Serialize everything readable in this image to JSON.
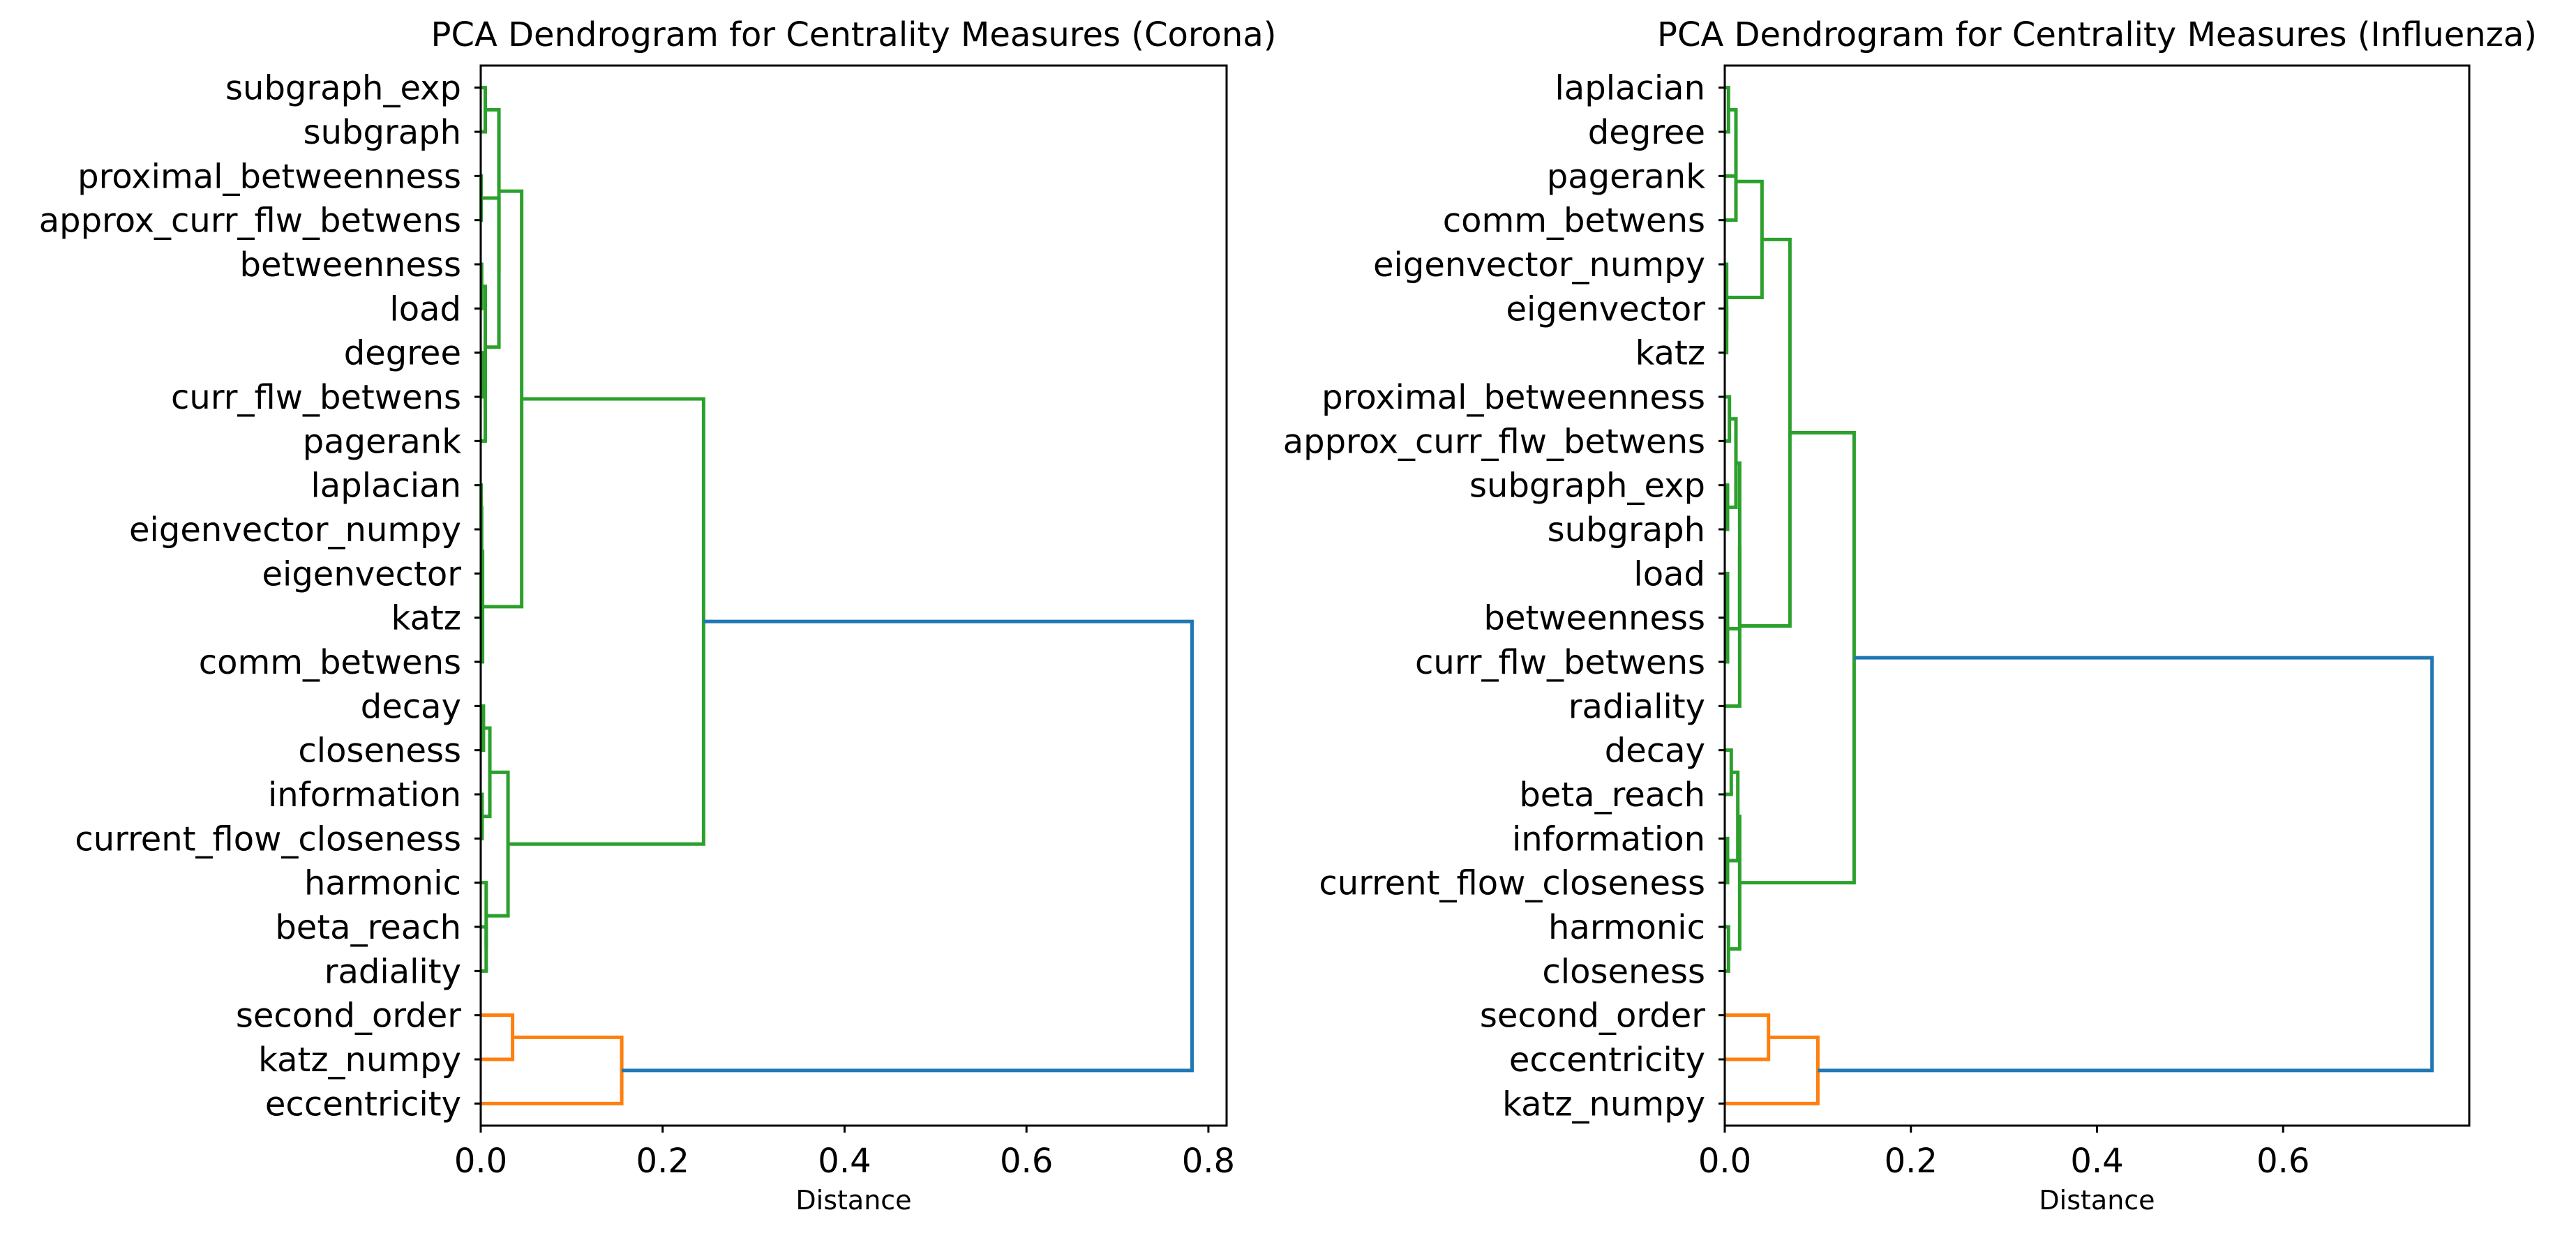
{
  "figure": {
    "xlabel": "Distance"
  },
  "chart_data": [
    {
      "type": "dendrogram",
      "orientation": "horizontal",
      "title": "PCA Dendrogram for Centrality Measures (Corona)",
      "xlabel": "Distance",
      "xlim": [
        0,
        0.82
      ],
      "xticks": [
        "0.0",
        "0.2",
        "0.4",
        "0.6",
        "0.8"
      ],
      "xtick_values": [
        0,
        0.2,
        0.4,
        0.6,
        0.8
      ],
      "leaves": [
        "subgraph_exp",
        "subgraph",
        "proximal_betweenness",
        "approx_curr_flw_betwens",
        "betweenness",
        "load",
        "degree",
        "curr_flw_betwens",
        "pagerank",
        "laplacian",
        "eigenvector_numpy",
        "eigenvector",
        "katz",
        "comm_betwens",
        "decay",
        "closeness",
        "information",
        "current_flow_closeness",
        "harmonic",
        "beta_reach",
        "radiality",
        "second_order",
        "katz_numpy",
        "eccentricity"
      ],
      "colors": {
        "green": "#2ca02c",
        "orange": "#ff7f0e",
        "blue": "#1f77b4"
      },
      "links": [
        {
          "a": 0,
          "b": 1,
          "h": 0.005,
          "c": "green"
        },
        {
          "a": 2,
          "b": 3,
          "h": 0.0005,
          "c": "green"
        },
        {
          "a": 4,
          "b": 5,
          "h": 0.001,
          "c": "green"
        },
        {
          "a": 6,
          "b": 7,
          "h": 0.003,
          "c": "green"
        },
        {
          "a": "N3",
          "b": 8,
          "h": 0.005,
          "c": "green"
        },
        {
          "a": "N2",
          "b": "N4",
          "h": 0.005,
          "c": "green"
        },
        {
          "a": 9,
          "b": 10,
          "h": 0.0005,
          "c": "green"
        },
        {
          "a": 11,
          "b": 12,
          "h": 0.0005,
          "c": "green"
        },
        {
          "a": "N6",
          "b": "N7",
          "h": 0.001,
          "c": "green"
        },
        {
          "a": "N8",
          "b": 13,
          "h": 0.002,
          "c": "green"
        },
        {
          "a": "N1",
          "b": "N5",
          "h": 0.02,
          "c": "green"
        },
        {
          "a": "N0",
          "b": "N10",
          "h": 0.02,
          "c": "green"
        },
        {
          "a": "N11",
          "b": "N9",
          "h": 0.045,
          "c": "green"
        },
        {
          "a": 14,
          "b": 15,
          "h": 0.003,
          "c": "green"
        },
        {
          "a": 16,
          "b": 17,
          "h": 0.0015,
          "c": "green"
        },
        {
          "a": "N13",
          "b": "N14",
          "h": 0.01,
          "c": "green"
        },
        {
          "a": 19,
          "b": 20,
          "h": 0.006,
          "c": "green"
        },
        {
          "a": 18,
          "b": "N16",
          "h": 0.006,
          "c": "green"
        },
        {
          "a": "N15",
          "b": "N17",
          "h": 0.03,
          "c": "green"
        },
        {
          "a": "N12",
          "b": "N18",
          "h": 0.245,
          "c": "green"
        },
        {
          "a": 21,
          "b": 22,
          "h": 0.035,
          "c": "orange"
        },
        {
          "a": "N20",
          "b": 23,
          "h": 0.155,
          "c": "orange"
        },
        {
          "a": "N19",
          "b": "N21",
          "h": 0.782,
          "c": "blue"
        }
      ]
    },
    {
      "type": "dendrogram",
      "orientation": "horizontal",
      "title": "PCA Dendrogram for Centrality Measures (Influenza)",
      "xlabel": "Distance",
      "xlim": [
        0,
        0.8
      ],
      "xticks": [
        "0.0",
        "0.2",
        "0.4",
        "0.6"
      ],
      "xtick_values": [
        0,
        0.2,
        0.4,
        0.6
      ],
      "leaves": [
        "laplacian",
        "degree",
        "pagerank",
        "comm_betwens",
        "eigenvector_numpy",
        "eigenvector",
        "katz",
        "proximal_betweenness",
        "approx_curr_flw_betwens",
        "subgraph_exp",
        "subgraph",
        "load",
        "betweenness",
        "curr_flw_betwens",
        "radiality",
        "decay",
        "beta_reach",
        "information",
        "current_flow_closeness",
        "harmonic",
        "closeness",
        "second_order",
        "eccentricity",
        "katz_numpy"
      ],
      "colors": {
        "green": "#2ca02c",
        "orange": "#ff7f0e",
        "blue": "#1f77b4"
      },
      "links": [
        {
          "a": 0,
          "b": 1,
          "h": 0.004,
          "c": "green"
        },
        {
          "a": "N0",
          "b": 2,
          "h": 0.012,
          "c": "green"
        },
        {
          "a": "N1",
          "b": 3,
          "h": 0.012,
          "c": "green"
        },
        {
          "a": 5,
          "b": 6,
          "h": 0.002,
          "c": "green"
        },
        {
          "a": 4,
          "b": "N3",
          "h": 0.002,
          "c": "green"
        },
        {
          "a": "N2",
          "b": "N4",
          "h": 0.04,
          "c": "green"
        },
        {
          "a": 7,
          "b": 8,
          "h": 0.005,
          "c": "green"
        },
        {
          "a": 9,
          "b": 10,
          "h": 0.003,
          "c": "green"
        },
        {
          "a": "N6",
          "b": "N7",
          "h": 0.012,
          "c": "green"
        },
        {
          "a": 11,
          "b": 12,
          "h": 0.003,
          "c": "green"
        },
        {
          "a": "N9",
          "b": 13,
          "h": 0.003,
          "c": "green"
        },
        {
          "a": "N8",
          "b": "N10",
          "h": 0.016,
          "c": "green"
        },
        {
          "a": "N11",
          "b": 14,
          "h": 0.016,
          "c": "green"
        },
        {
          "a": "N5",
          "b": "N12",
          "h": 0.07,
          "c": "green"
        },
        {
          "a": 15,
          "b": 16,
          "h": 0.007,
          "c": "green"
        },
        {
          "a": 17,
          "b": 18,
          "h": 0.003,
          "c": "green"
        },
        {
          "a": "N14",
          "b": "N15",
          "h": 0.014,
          "c": "green"
        },
        {
          "a": 19,
          "b": 20,
          "h": 0.004,
          "c": "green"
        },
        {
          "a": "N16",
          "b": "N17",
          "h": 0.016,
          "c": "green"
        },
        {
          "a": "N13",
          "b": "N18",
          "h": 0.139,
          "c": "green"
        },
        {
          "a": 21,
          "b": 22,
          "h": 0.047,
          "c": "orange"
        },
        {
          "a": "N20",
          "b": 23,
          "h": 0.1,
          "c": "orange"
        },
        {
          "a": "N19",
          "b": "N21",
          "h": 0.76,
          "c": "blue"
        }
      ]
    }
  ]
}
